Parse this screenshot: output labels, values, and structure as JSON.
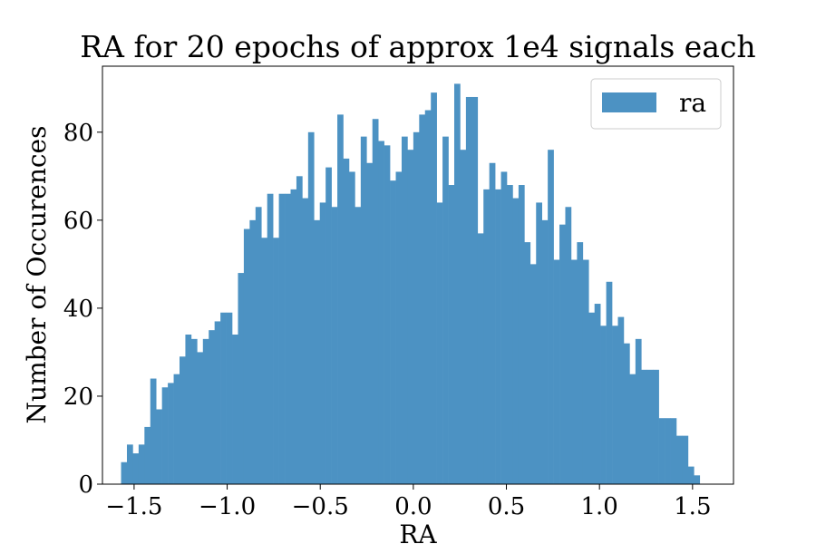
{
  "chart_data": {
    "type": "bar",
    "title": "RA for 20 epochs of approx 1e4 signals each",
    "xlabel": "RA",
    "ylabel": "Number of Occurences",
    "xlim": [
      -1.67,
      1.72
    ],
    "ylim": [
      0,
      95
    ],
    "xticks": [
      -1.5,
      -1.0,
      -0.5,
      0.0,
      0.5,
      1.0,
      1.5
    ],
    "xtick_labels": [
      "−1.5",
      "−1.0",
      "−0.5",
      "0.0",
      "0.5",
      "1.0",
      "1.5"
    ],
    "yticks": [
      0,
      20,
      40,
      60,
      80
    ],
    "ytick_labels": [
      "0",
      "20",
      "40",
      "60",
      "80"
    ],
    "grid": false,
    "legend": {
      "position": "top-right",
      "entries": [
        "ra"
      ]
    },
    "bin_start": -1.57,
    "bin_width": 0.0314,
    "series": [
      {
        "name": "ra",
        "color": "#4c92c3",
        "values": [
          5,
          9,
          7,
          9,
          13,
          24,
          17,
          22,
          23,
          25,
          29,
          34,
          33,
          30,
          33,
          35,
          37,
          39,
          39,
          34,
          48,
          58,
          60,
          63,
          56,
          66,
          56,
          66,
          66,
          67,
          70,
          65,
          80,
          60,
          64,
          72,
          63,
          84,
          74,
          71,
          63,
          79,
          73,
          83,
          78,
          77,
          69,
          71,
          79,
          76,
          80,
          84,
          85,
          89,
          64,
          79,
          68,
          91,
          76,
          88,
          88,
          57,
          67,
          73,
          67,
          71,
          68,
          65,
          68,
          55,
          50,
          64,
          60,
          76,
          51,
          59,
          63,
          51,
          55,
          51,
          39,
          41,
          36,
          46,
          36,
          38,
          32,
          25,
          33,
          26,
          26,
          26,
          15,
          15,
          15,
          11,
          11,
          4,
          2
        ]
      }
    ]
  }
}
